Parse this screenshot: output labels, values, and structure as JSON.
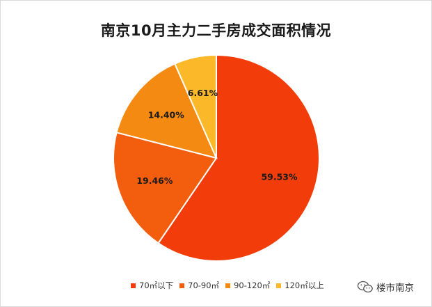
{
  "chart_data": {
    "type": "pie",
    "title": "南京10月主力二手房成交面积情况",
    "categories": [
      "70㎡以下",
      "70-90㎡",
      "90-120㎡",
      "120㎡以上"
    ],
    "values": [
      59.53,
      19.46,
      14.4,
      6.61
    ],
    "labels": [
      "59.53%",
      "19.46%",
      "14.40%",
      "6.61%"
    ],
    "colors": [
      "#f23d0a",
      "#f25e0e",
      "#f58a12",
      "#fbb92a"
    ],
    "legend_position": "bottom"
  },
  "watermark": {
    "text": "楼市南京",
    "icon": "wechat-icon"
  }
}
